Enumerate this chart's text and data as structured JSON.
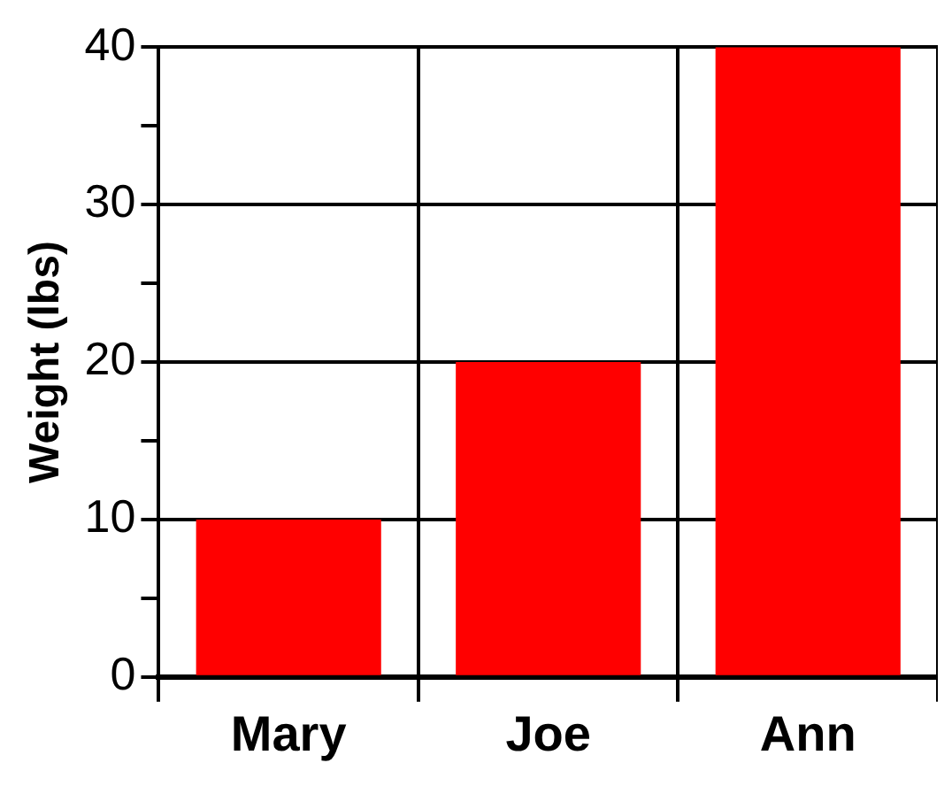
{
  "chart_data": {
    "type": "bar",
    "ylabel": "Weight (lbs)",
    "categories": [
      "Mary",
      "Joe",
      "Ann"
    ],
    "values": [
      10,
      20,
      40
    ],
    "color": "#ff0000",
    "ylim": [
      0,
      40
    ],
    "yticks": [
      0,
      {
        "value": 5,
        "label": null
      },
      10,
      {
        "value": 15,
        "label": null
      },
      20,
      {
        "value": 25,
        "label": null
      },
      30,
      {
        "value": 35,
        "label": null
      },
      40
    ],
    "grid": true
  }
}
